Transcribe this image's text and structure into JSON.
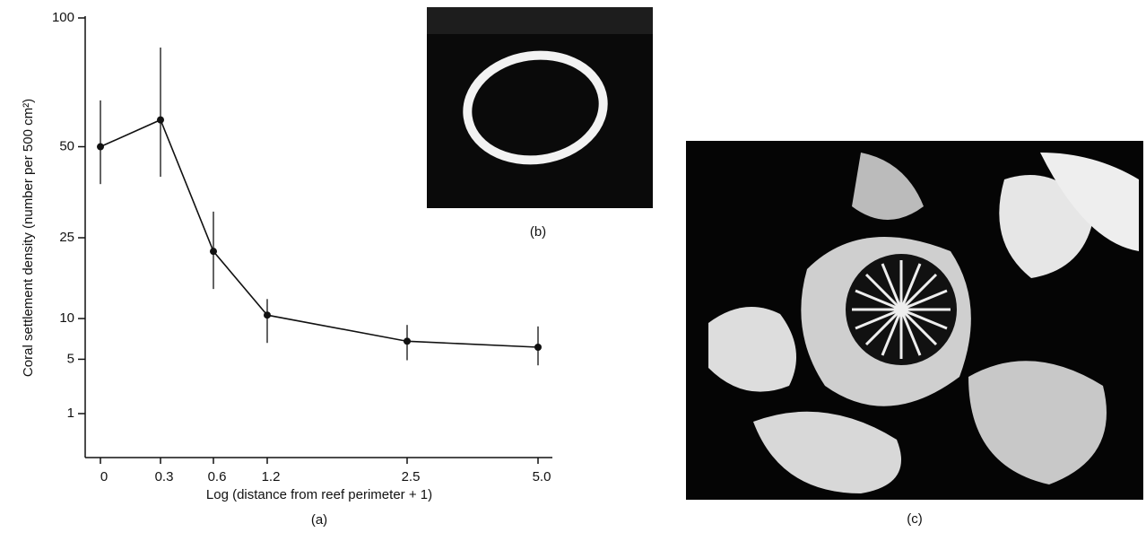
{
  "chart_data": {
    "type": "line",
    "caption": "(a)",
    "ylabel": "Coral settlement density (number per 500 cm²)",
    "xlabel": "Log (distance from reef perimeter + 1)",
    "categories": [
      "0",
      "0.3",
      "0.6",
      "1.2",
      "2.5",
      "5.0"
    ],
    "values": [
      50,
      59,
      22,
      10.5,
      7,
      6.3
    ],
    "error_low": [
      38.7,
      40.8,
      14.7,
      6.8,
      4.9,
      4.4
    ],
    "error_high": [
      66,
      87,
      31.3,
      13,
      9.1,
      8.9
    ],
    "color": "#111111",
    "yscale": "sqrt",
    "ylim": [
      0,
      100
    ],
    "yticks": [
      1,
      5,
      10,
      25,
      50,
      100
    ]
  },
  "figures": [
    {
      "caption": "(b)"
    },
    {
      "caption": "(c)"
    }
  ]
}
